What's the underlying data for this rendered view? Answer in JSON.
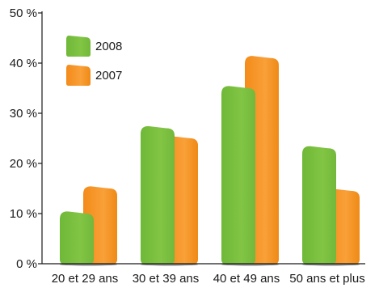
{
  "chart_data": {
    "type": "bar",
    "categories": [
      "20 et 29 ans",
      "30 et 39 ans",
      "40 et 49 ans",
      "50 ans et plus"
    ],
    "series": [
      {
        "name": "2008",
        "values": [
          10.5,
          27.5,
          35.5,
          23.5
        ],
        "color": "#7dc242"
      },
      {
        "name": "2007",
        "values": [
          15.5,
          25.5,
          41.5,
          15.0
        ],
        "color": "#f7941d"
      }
    ],
    "ylim": [
      0,
      50
    ],
    "yticks": [
      0,
      10,
      20,
      30,
      40,
      50
    ],
    "ytick_labels": [
      "0 %",
      "10 %",
      "20 %",
      "30 %",
      "40 %",
      "50 %"
    ],
    "legend_position": "top-left",
    "grid": false,
    "title": "",
    "xlabel": "",
    "ylabel": ""
  }
}
